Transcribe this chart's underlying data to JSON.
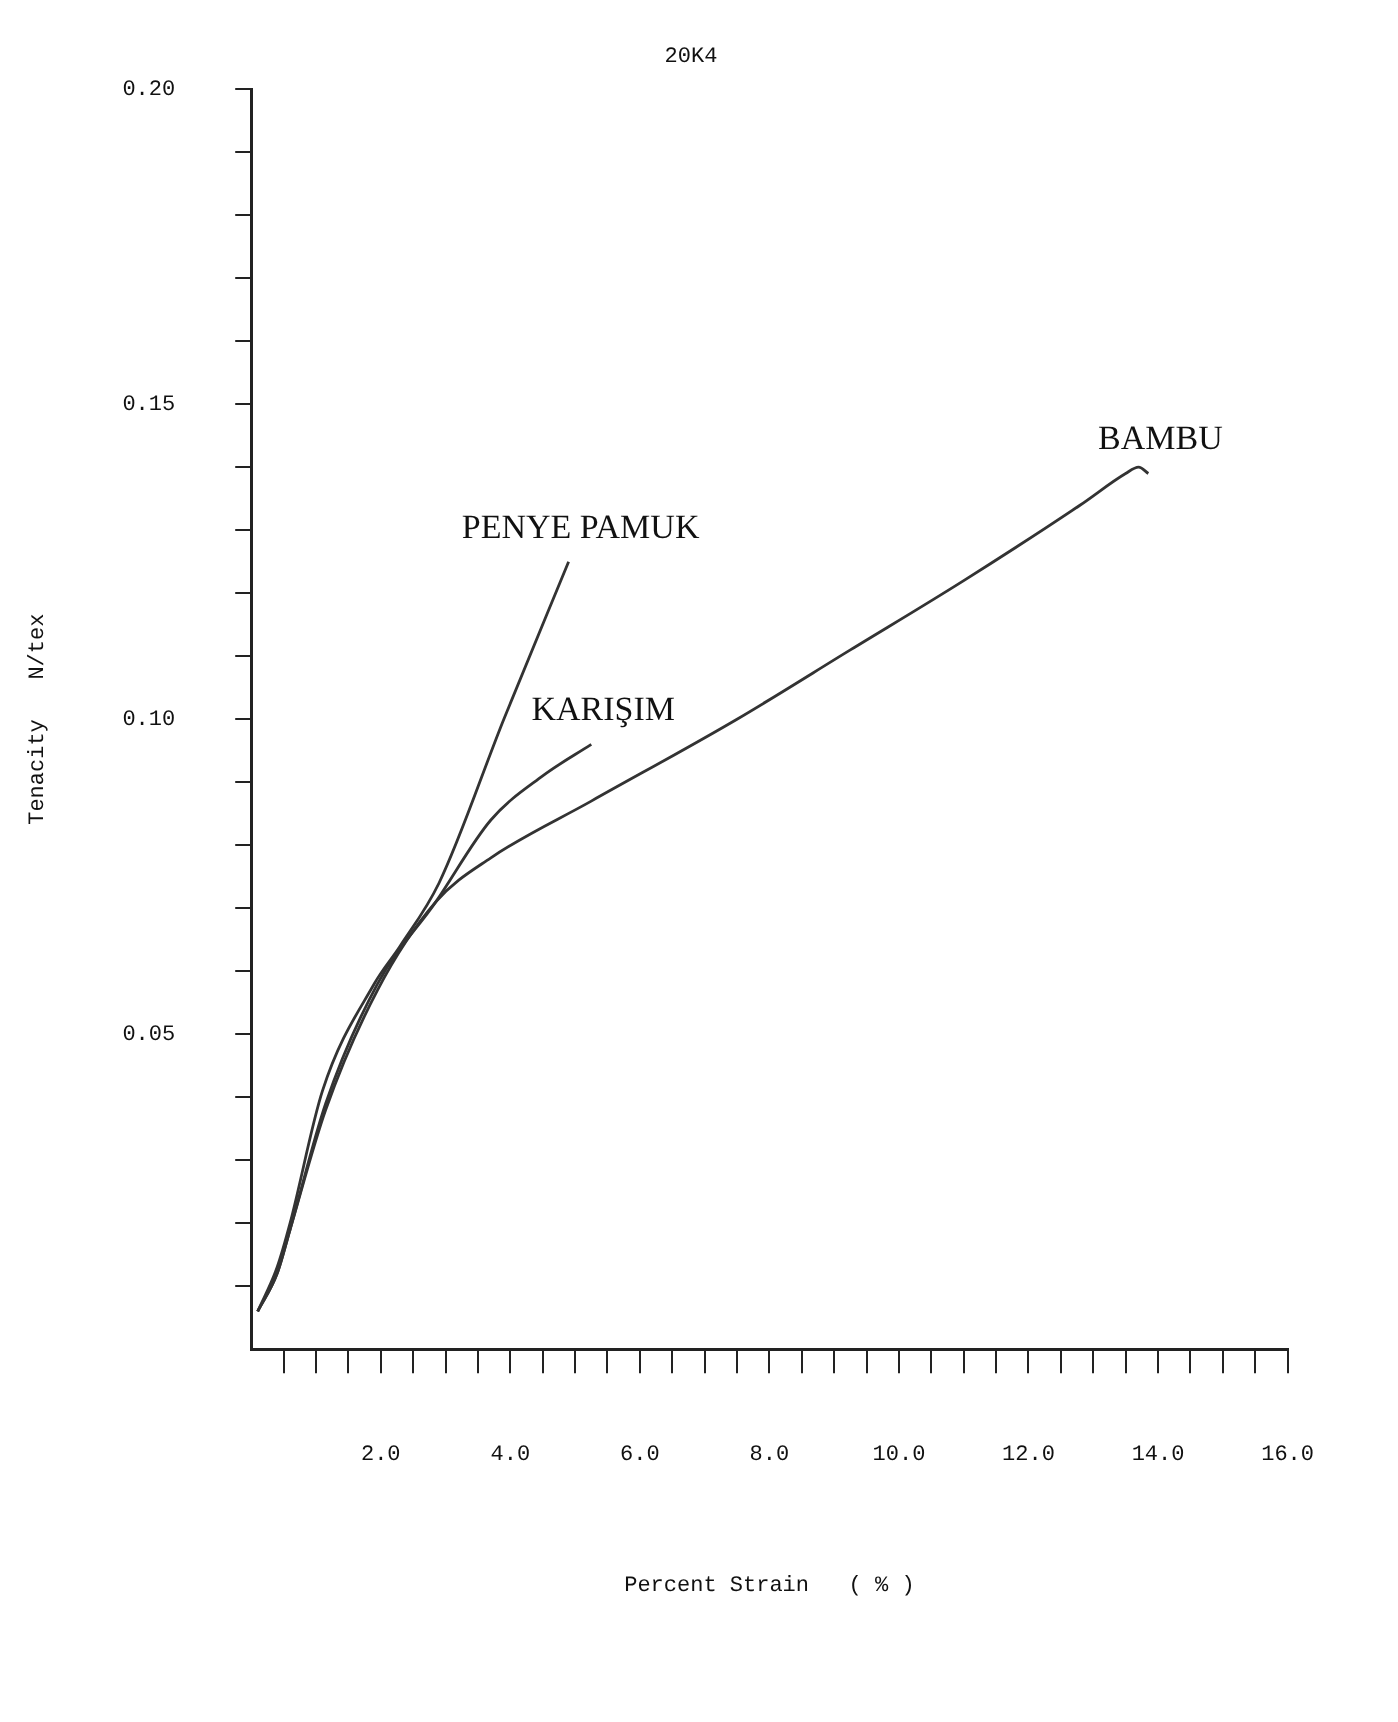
{
  "chart_data": {
    "type": "line",
    "title": "20K4",
    "xlabel": "Percent Strain   ( % )",
    "ylabel": "Tenacity   N/tex",
    "xlim": [
      0,
      16
    ],
    "ylim": [
      0,
      0.2
    ],
    "xticks": [
      {
        "value": 0.5,
        "label": null
      },
      {
        "value": 1,
        "label": null
      },
      {
        "value": 1.5,
        "label": null
      },
      {
        "value": 2,
        "label": "2.0"
      },
      {
        "value": 2.5,
        "label": null
      },
      {
        "value": 3,
        "label": null
      },
      {
        "value": 3.5,
        "label": null
      },
      {
        "value": 4,
        "label": "4.0"
      },
      {
        "value": 4.5,
        "label": null
      },
      {
        "value": 5,
        "label": null
      },
      {
        "value": 5.5,
        "label": null
      },
      {
        "value": 6,
        "label": "6.0"
      },
      {
        "value": 6.5,
        "label": null
      },
      {
        "value": 7,
        "label": null
      },
      {
        "value": 7.5,
        "label": null
      },
      {
        "value": 8,
        "label": "8.0"
      },
      {
        "value": 8.5,
        "label": null
      },
      {
        "value": 9,
        "label": null
      },
      {
        "value": 9.5,
        "label": null
      },
      {
        "value": 10,
        "label": "10.0"
      },
      {
        "value": 10.5,
        "label": null
      },
      {
        "value": 11,
        "label": null
      },
      {
        "value": 11.5,
        "label": null
      },
      {
        "value": 12,
        "label": "12.0"
      },
      {
        "value": 12.5,
        "label": null
      },
      {
        "value": 13,
        "label": null
      },
      {
        "value": 13.5,
        "label": null
      },
      {
        "value": 14,
        "label": "14.0"
      },
      {
        "value": 14.5,
        "label": null
      },
      {
        "value": 15,
        "label": null
      },
      {
        "value": 15.5,
        "label": null
      },
      {
        "value": 16,
        "label": "16.0"
      }
    ],
    "yticks": [
      {
        "value": 0.01,
        "label": null
      },
      {
        "value": 0.02,
        "label": null
      },
      {
        "value": 0.03,
        "label": null
      },
      {
        "value": 0.04,
        "label": null
      },
      {
        "value": 0.05,
        "label": "0.05"
      },
      {
        "value": 0.06,
        "label": null
      },
      {
        "value": 0.07,
        "label": null
      },
      {
        "value": 0.08,
        "label": null
      },
      {
        "value": 0.09,
        "label": null
      },
      {
        "value": 0.1,
        "label": "0.10"
      },
      {
        "value": 0.11,
        "label": null
      },
      {
        "value": 0.12,
        "label": null
      },
      {
        "value": 0.13,
        "label": null
      },
      {
        "value": 0.14,
        "label": null
      },
      {
        "value": 0.15,
        "label": "0.15"
      },
      {
        "value": 0.16,
        "label": null
      },
      {
        "value": 0.17,
        "label": null
      },
      {
        "value": 0.18,
        "label": null
      },
      {
        "value": 0.19,
        "label": null
      },
      {
        "value": 0.2,
        "label": "0.20"
      }
    ],
    "grid": false,
    "legend": false,
    "marker": "none",
    "line_style": "solid",
    "series": [
      {
        "name": "PENYE PAMUK",
        "color": "#333333",
        "x": [
          0.1,
          0.4,
          0.6,
          1.1,
          1.9,
          2.3,
          2.9,
          3.9,
          4.9
        ],
        "values": [
          0.006,
          0.013,
          0.02,
          0.041,
          0.058,
          0.064,
          0.074,
          0.1,
          0.125
        ]
      },
      {
        "name": "KARIŞIM",
        "color": "#333333",
        "x": [
          0.1,
          0.4,
          0.6,
          1.15,
          1.95,
          2.85,
          3.7,
          4.5,
          5.25
        ],
        "values": [
          0.006,
          0.012,
          0.019,
          0.039,
          0.058,
          0.071,
          0.084,
          0.091,
          0.096
        ]
      },
      {
        "name": "BAMBU",
        "color": "#333333",
        "x": [
          0.1,
          0.4,
          0.6,
          1.15,
          1.95,
          2.85,
          3.7,
          5.25,
          7.5,
          9.25,
          11,
          12.8,
          13.5,
          13.7,
          13.85
        ],
        "values": [
          0.006,
          0.012,
          0.019,
          0.038,
          0.057,
          0.071,
          0.078,
          0.087,
          0.1,
          0.111,
          0.122,
          0.134,
          0.139,
          0.14,
          0.139
        ]
      }
    ]
  }
}
